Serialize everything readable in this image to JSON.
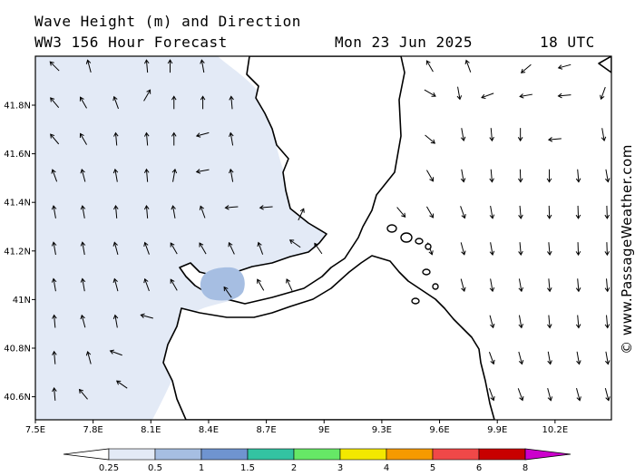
{
  "header": {
    "title_line1": "Wave Height (m) and Direction",
    "title_line2": "WW3 156 Hour Forecast",
    "date": "Mon 23 Jun 2025",
    "time": "18 UTC"
  },
  "credit": "© www.PassageWeather.com",
  "map": {
    "lon_range": [
      7.5,
      10.8
    ],
    "lat_range": [
      40.5,
      42.0
    ],
    "x_ticks": [
      "7.5E",
      "7.8E",
      "8.1E",
      "8.4E",
      "8.7E",
      "9E",
      "9.3E",
      "9.6E",
      "9.9E",
      "10.2E"
    ],
    "y_ticks": [
      "41.8N",
      "41.6N",
      "41.4N",
      "41.2N",
      "41N",
      "40.8N",
      "40.6N"
    ],
    "land_color": "#ffffff",
    "coast_color": "#000000"
  },
  "legend": {
    "labels": [
      "0.25",
      "0.5",
      "1",
      "1.5",
      "2",
      "3",
      "4",
      "5",
      "6",
      "8"
    ],
    "colors": [
      "#ffffff",
      "#e3eaf6",
      "#a6bee2",
      "#6f94d0",
      "#33c3a2",
      "#66e866",
      "#f3e800",
      "#f59a00",
      "#f04848",
      "#c80000",
      "#cc00cc"
    ]
  },
  "wave_field": {
    "shaded_color": "#e3eaf6",
    "patch_color": "#a6bee2",
    "patch_range_m": "1-1.5"
  },
  "arrows": {
    "note_units": "direction arrows in degrees (screen angle, 0 = east)",
    "columns_lon": [
      7.6,
      7.75,
      7.9,
      8.05,
      8.2,
      8.35,
      8.5,
      8.65,
      8.8,
      8.95,
      9.1,
      9.25,
      9.4,
      9.55,
      9.7,
      9.85,
      10.0,
      10.15,
      10.3,
      10.45
    ],
    "west": [
      {
        "lon": 7.6,
        "lat": 41.96,
        "dir": 225
      },
      {
        "lon": 7.78,
        "lat": 41.96,
        "dir": 255
      },
      {
        "lon": 8.08,
        "lat": 41.96,
        "dir": 265
      },
      {
        "lon": 8.2,
        "lat": 41.96,
        "dir": 270
      },
      {
        "lon": 8.37,
        "lat": 41.96,
        "dir": 260
      },
      {
        "lon": 7.6,
        "lat": 41.81,
        "dir": 230
      },
      {
        "lon": 7.75,
        "lat": 41.81,
        "dir": 240
      },
      {
        "lon": 7.92,
        "lat": 41.81,
        "dir": 250
      },
      {
        "lon": 8.08,
        "lat": 41.84,
        "dir": 300
      },
      {
        "lon": 8.22,
        "lat": 41.81,
        "dir": 270
      },
      {
        "lon": 8.37,
        "lat": 41.81,
        "dir": 270
      },
      {
        "lon": 8.52,
        "lat": 41.81,
        "dir": 265
      },
      {
        "lon": 7.6,
        "lat": 41.66,
        "dir": 230
      },
      {
        "lon": 7.75,
        "lat": 41.66,
        "dir": 240
      },
      {
        "lon": 7.92,
        "lat": 41.66,
        "dir": 265
      },
      {
        "lon": 8.08,
        "lat": 41.66,
        "dir": 265
      },
      {
        "lon": 8.22,
        "lat": 41.66,
        "dir": 270
      },
      {
        "lon": 8.37,
        "lat": 41.68,
        "dir": 165
      },
      {
        "lon": 8.52,
        "lat": 41.66,
        "dir": 260
      },
      {
        "lon": 7.6,
        "lat": 41.51,
        "dir": 250
      },
      {
        "lon": 7.75,
        "lat": 41.51,
        "dir": 255
      },
      {
        "lon": 7.92,
        "lat": 41.51,
        "dir": 260
      },
      {
        "lon": 8.08,
        "lat": 41.51,
        "dir": 265
      },
      {
        "lon": 8.22,
        "lat": 41.51,
        "dir": 280
      },
      {
        "lon": 8.37,
        "lat": 41.53,
        "dir": 170
      },
      {
        "lon": 8.52,
        "lat": 41.51,
        "dir": 260
      },
      {
        "lon": 7.6,
        "lat": 41.36,
        "dir": 260
      },
      {
        "lon": 7.75,
        "lat": 41.36,
        "dir": 260
      },
      {
        "lon": 7.92,
        "lat": 41.36,
        "dir": 265
      },
      {
        "lon": 8.08,
        "lat": 41.36,
        "dir": 265
      },
      {
        "lon": 8.22,
        "lat": 41.36,
        "dir": 260
      },
      {
        "lon": 8.37,
        "lat": 41.36,
        "dir": 250
      },
      {
        "lon": 8.52,
        "lat": 41.38,
        "dir": 175
      },
      {
        "lon": 8.7,
        "lat": 41.38,
        "dir": 175
      },
      {
        "lon": 8.88,
        "lat": 41.35,
        "dir": 295
      },
      {
        "lon": 7.6,
        "lat": 41.21,
        "dir": 260
      },
      {
        "lon": 7.75,
        "lat": 41.21,
        "dir": 260
      },
      {
        "lon": 7.92,
        "lat": 41.21,
        "dir": 255
      },
      {
        "lon": 8.08,
        "lat": 41.21,
        "dir": 250
      },
      {
        "lon": 8.22,
        "lat": 41.21,
        "dir": 240
      },
      {
        "lon": 8.37,
        "lat": 41.21,
        "dir": 240
      },
      {
        "lon": 8.52,
        "lat": 41.21,
        "dir": 245
      },
      {
        "lon": 8.67,
        "lat": 41.21,
        "dir": 250
      },
      {
        "lon": 8.85,
        "lat": 41.23,
        "dir": 215
      },
      {
        "lon": 8.97,
        "lat": 41.21,
        "dir": 235
      },
      {
        "lon": 7.6,
        "lat": 41.06,
        "dir": 260
      },
      {
        "lon": 7.75,
        "lat": 41.06,
        "dir": 260
      },
      {
        "lon": 7.92,
        "lat": 41.06,
        "dir": 255
      },
      {
        "lon": 8.08,
        "lat": 41.06,
        "dir": 250
      },
      {
        "lon": 8.22,
        "lat": 41.06,
        "dir": 240
      },
      {
        "lon": 8.5,
        "lat": 41.03,
        "dir": 235
      },
      {
        "lon": 8.67,
        "lat": 41.06,
        "dir": 240
      },
      {
        "lon": 8.82,
        "lat": 41.06,
        "dir": 245
      },
      {
        "lon": 7.6,
        "lat": 40.91,
        "dir": 265
      },
      {
        "lon": 7.75,
        "lat": 40.91,
        "dir": 255
      },
      {
        "lon": 7.92,
        "lat": 40.91,
        "dir": 260
      },
      {
        "lon": 8.08,
        "lat": 40.93,
        "dir": 195
      },
      {
        "lon": 7.6,
        "lat": 40.76,
        "dir": 265
      },
      {
        "lon": 7.78,
        "lat": 40.76,
        "dir": 255
      },
      {
        "lon": 7.92,
        "lat": 40.78,
        "dir": 200
      },
      {
        "lon": 7.6,
        "lat": 40.61,
        "dir": 265
      },
      {
        "lon": 7.75,
        "lat": 40.61,
        "dir": 230
      },
      {
        "lon": 7.95,
        "lat": 40.65,
        "dir": 215
      }
    ],
    "east": [
      {
        "lon": 9.55,
        "lat": 41.96,
        "dir": 240
      },
      {
        "lon": 9.75,
        "lat": 41.96,
        "dir": 250
      },
      {
        "lon": 10.05,
        "lat": 41.95,
        "dir": 140
      },
      {
        "lon": 10.25,
        "lat": 41.96,
        "dir": 165
      },
      {
        "lon": 10.55,
        "lat": 41.96,
        "dir": 220
      },
      {
        "lon": 9.55,
        "lat": 41.85,
        "dir": 30
      },
      {
        "lon": 9.7,
        "lat": 41.85,
        "dir": 80
      },
      {
        "lon": 9.85,
        "lat": 41.84,
        "dir": 160
      },
      {
        "lon": 10.05,
        "lat": 41.84,
        "dir": 170
      },
      {
        "lon": 10.25,
        "lat": 41.84,
        "dir": 175
      },
      {
        "lon": 10.45,
        "lat": 41.85,
        "dir": 110
      },
      {
        "lon": 10.6,
        "lat": 41.85,
        "dir": 80
      },
      {
        "lon": 9.55,
        "lat": 41.66,
        "dir": 40
      },
      {
        "lon": 9.72,
        "lat": 41.68,
        "dir": 80
      },
      {
        "lon": 9.87,
        "lat": 41.68,
        "dir": 85
      },
      {
        "lon": 10.02,
        "lat": 41.68,
        "dir": 90
      },
      {
        "lon": 10.2,
        "lat": 41.66,
        "dir": 175
      },
      {
        "lon": 10.45,
        "lat": 41.68,
        "dir": 80
      },
      {
        "lon": 10.6,
        "lat": 41.68,
        "dir": 85
      },
      {
        "lon": 9.55,
        "lat": 41.51,
        "dir": 60
      },
      {
        "lon": 9.72,
        "lat": 41.51,
        "dir": 80
      },
      {
        "lon": 9.87,
        "lat": 41.51,
        "dir": 85
      },
      {
        "lon": 10.02,
        "lat": 41.51,
        "dir": 88
      },
      {
        "lon": 10.17,
        "lat": 41.51,
        "dir": 90
      },
      {
        "lon": 10.32,
        "lat": 41.51,
        "dir": 85
      },
      {
        "lon": 10.47,
        "lat": 41.51,
        "dir": 80
      },
      {
        "lon": 10.62,
        "lat": 41.51,
        "dir": 80
      },
      {
        "lon": 9.4,
        "lat": 41.36,
        "dir": 50
      },
      {
        "lon": 9.55,
        "lat": 41.36,
        "dir": 60
      },
      {
        "lon": 9.72,
        "lat": 41.36,
        "dir": 70
      },
      {
        "lon": 9.87,
        "lat": 41.36,
        "dir": 80
      },
      {
        "lon": 10.02,
        "lat": 41.36,
        "dir": 85
      },
      {
        "lon": 10.17,
        "lat": 41.36,
        "dir": 88
      },
      {
        "lon": 10.32,
        "lat": 41.36,
        "dir": 88
      },
      {
        "lon": 10.47,
        "lat": 41.36,
        "dir": 88
      },
      {
        "lon": 10.62,
        "lat": 41.36,
        "dir": 85
      },
      {
        "lon": 9.55,
        "lat": 41.21,
        "dir": 70
      },
      {
        "lon": 9.72,
        "lat": 41.21,
        "dir": 75
      },
      {
        "lon": 9.87,
        "lat": 41.21,
        "dir": 80
      },
      {
        "lon": 10.02,
        "lat": 41.21,
        "dir": 85
      },
      {
        "lon": 10.17,
        "lat": 41.21,
        "dir": 85
      },
      {
        "lon": 10.32,
        "lat": 41.21,
        "dir": 88
      },
      {
        "lon": 10.47,
        "lat": 41.21,
        "dir": 88
      },
      {
        "lon": 10.62,
        "lat": 41.21,
        "dir": 85
      },
      {
        "lon": 9.72,
        "lat": 41.06,
        "dir": 75
      },
      {
        "lon": 9.87,
        "lat": 41.06,
        "dir": 80
      },
      {
        "lon": 10.02,
        "lat": 41.06,
        "dir": 80
      },
      {
        "lon": 10.17,
        "lat": 41.06,
        "dir": 85
      },
      {
        "lon": 10.32,
        "lat": 41.06,
        "dir": 85
      },
      {
        "lon": 10.47,
        "lat": 41.06,
        "dir": 85
      },
      {
        "lon": 10.62,
        "lat": 41.06,
        "dir": 80
      },
      {
        "lon": 9.87,
        "lat": 40.91,
        "dir": 75
      },
      {
        "lon": 10.02,
        "lat": 40.91,
        "dir": 80
      },
      {
        "lon": 10.17,
        "lat": 40.91,
        "dir": 85
      },
      {
        "lon": 10.32,
        "lat": 40.91,
        "dir": 85
      },
      {
        "lon": 10.47,
        "lat": 40.91,
        "dir": 85
      },
      {
        "lon": 10.62,
        "lat": 40.91,
        "dir": 80
      },
      {
        "lon": 9.87,
        "lat": 40.76,
        "dir": 70
      },
      {
        "lon": 10.02,
        "lat": 40.76,
        "dir": 75
      },
      {
        "lon": 10.17,
        "lat": 40.76,
        "dir": 80
      },
      {
        "lon": 10.32,
        "lat": 40.76,
        "dir": 80
      },
      {
        "lon": 10.47,
        "lat": 40.76,
        "dir": 80
      },
      {
        "lon": 10.65,
        "lat": 40.76,
        "dir": 60
      },
      {
        "lon": 9.87,
        "lat": 40.61,
        "dir": 70
      },
      {
        "lon": 10.02,
        "lat": 40.61,
        "dir": 70
      },
      {
        "lon": 10.17,
        "lat": 40.61,
        "dir": 75
      },
      {
        "lon": 10.32,
        "lat": 40.61,
        "dir": 75
      },
      {
        "lon": 10.47,
        "lat": 40.61,
        "dir": 75
      },
      {
        "lon": 10.65,
        "lat": 40.64,
        "dir": 190
      }
    ]
  }
}
